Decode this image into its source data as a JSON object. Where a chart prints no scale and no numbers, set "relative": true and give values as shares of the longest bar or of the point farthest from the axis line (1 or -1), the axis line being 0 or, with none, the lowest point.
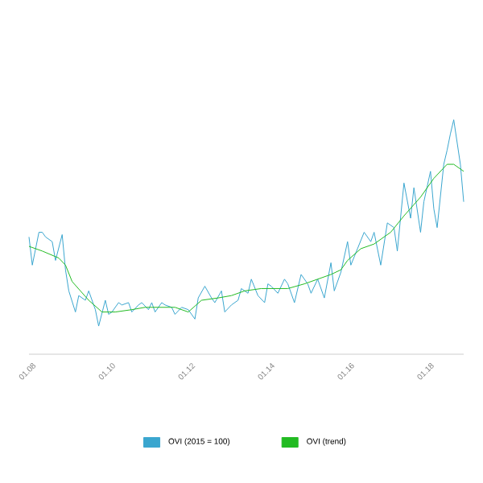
{
  "chart_data": {
    "type": "line",
    "relative": true,
    "legend": "bottom",
    "marker": "none",
    "xlim": [
      "2007-12",
      "2018-11"
    ],
    "xticks": [
      {
        "value": "2008-01",
        "label": "01.08"
      },
      {
        "value": "2010-01",
        "label": "01.10"
      },
      {
        "value": "2012-01",
        "label": "01.12"
      },
      {
        "value": "2014-01",
        "label": "01.14"
      },
      {
        "value": "2016-01",
        "label": "01.16"
      },
      {
        "value": "2018-01",
        "label": "01.18"
      }
    ],
    "series": [
      {
        "name": "OVI (2015 = 100)",
        "color": "#3aa6cf",
        "x": [
          "2007-12",
          "2008-01",
          "2008-03",
          "2008-04",
          "2008-05",
          "2008-07",
          "2008-08",
          "2008-10",
          "2008-11",
          "2008-12",
          "2009-02",
          "2009-03",
          "2009-05",
          "2009-06",
          "2009-08",
          "2009-09",
          "2009-11",
          "2009-12",
          "2010-01",
          "2010-03",
          "2010-04",
          "2010-06",
          "2010-07",
          "2010-09",
          "2010-10",
          "2010-12",
          "2011-01",
          "2011-02",
          "2011-04",
          "2011-05",
          "2011-07",
          "2011-08",
          "2011-10",
          "2011-12",
          "2012-02",
          "2012-03",
          "2012-05",
          "2012-07",
          "2012-08",
          "2012-10",
          "2012-11",
          "2013-01",
          "2013-03",
          "2013-04",
          "2013-06",
          "2013-07",
          "2013-09",
          "2013-11",
          "2013-12",
          "2014-01",
          "2014-03",
          "2014-05",
          "2014-06",
          "2014-08",
          "2014-10",
          "2014-12",
          "2015-01",
          "2015-03",
          "2015-05",
          "2015-07",
          "2015-08",
          "2015-10",
          "2015-12",
          "2016-01",
          "2016-03",
          "2016-05",
          "2016-07",
          "2016-08",
          "2016-10",
          "2016-12",
          "2017-02",
          "2017-03",
          "2017-05",
          "2017-07",
          "2017-08",
          "2017-10",
          "2017-11",
          "2018-01",
          "2018-02",
          "2018-03",
          "2018-05",
          "2018-06",
          "2018-07",
          "2018-08",
          "2018-10",
          "2018-11"
        ],
        "values": [
          0.5,
          0.38,
          0.52,
          0.52,
          0.5,
          0.48,
          0.4,
          0.51,
          0.36,
          0.27,
          0.18,
          0.25,
          0.23,
          0.27,
          0.19,
          0.12,
          0.23,
          0.17,
          0.18,
          0.22,
          0.21,
          0.22,
          0.18,
          0.21,
          0.22,
          0.19,
          0.22,
          0.18,
          0.22,
          0.21,
          0.2,
          0.17,
          0.2,
          0.19,
          0.15,
          0.24,
          0.29,
          0.24,
          0.22,
          0.27,
          0.18,
          0.21,
          0.23,
          0.28,
          0.26,
          0.32,
          0.25,
          0.22,
          0.3,
          0.29,
          0.26,
          0.32,
          0.3,
          0.22,
          0.34,
          0.3,
          0.26,
          0.32,
          0.24,
          0.39,
          0.27,
          0.35,
          0.48,
          0.38,
          0.45,
          0.52,
          0.48,
          0.52,
          0.38,
          0.56,
          0.54,
          0.44,
          0.73,
          0.58,
          0.71,
          0.52,
          0.65,
          0.78,
          0.62,
          0.54,
          0.81,
          0.87,
          0.94,
          1.0,
          0.81,
          0.65
        ]
      },
      {
        "name": "OVI (trend)",
        "color": "#22bb22",
        "x": [
          "2007-12",
          "2008-04",
          "2008-09",
          "2008-11",
          "2009-01",
          "2009-06",
          "2009-10",
          "2010-02",
          "2010-07",
          "2010-11",
          "2011-03",
          "2011-08",
          "2011-12",
          "2012-04",
          "2012-09",
          "2013-01",
          "2013-05",
          "2013-10",
          "2014-02",
          "2014-06",
          "2014-11",
          "2015-03",
          "2015-07",
          "2015-10",
          "2015-12",
          "2016-04",
          "2016-08",
          "2017-01",
          "2017-05",
          "2017-10",
          "2018-02",
          "2018-06",
          "2018-08",
          "2018-11"
        ],
        "values": [
          0.46,
          0.44,
          0.41,
          0.38,
          0.31,
          0.23,
          0.18,
          0.18,
          0.19,
          0.2,
          0.2,
          0.2,
          0.18,
          0.23,
          0.24,
          0.25,
          0.27,
          0.28,
          0.28,
          0.28,
          0.3,
          0.32,
          0.34,
          0.36,
          0.4,
          0.45,
          0.47,
          0.52,
          0.59,
          0.67,
          0.75,
          0.81,
          0.81,
          0.78
        ]
      }
    ]
  }
}
